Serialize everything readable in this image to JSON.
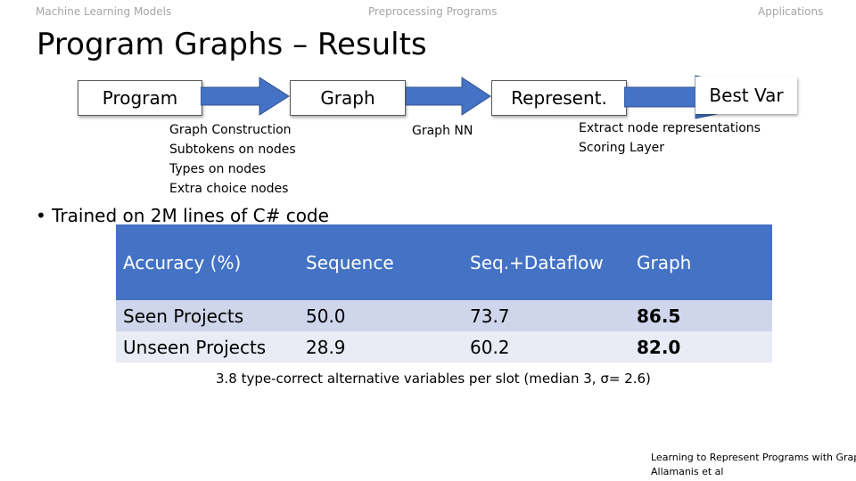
{
  "nav": {
    "left": "Machine Learning Models",
    "center": "Preprocessing Programs",
    "right": "Applications"
  },
  "title": "Program Graphs – Results",
  "pipeline": {
    "program": "Program",
    "graph": "Graph",
    "represent": "Represent.",
    "best_var": "Best Var"
  },
  "notes": {
    "graph_steps": [
      "Graph Construction",
      "Subtokens on nodes",
      "Types on nodes",
      "Extra choice nodes"
    ],
    "graph_nn": "Graph NN",
    "readout": [
      "Extract node representations",
      "Scoring Layer"
    ]
  },
  "bullet": "Trained on 2M lines of C# code",
  "table": {
    "headers": [
      "Accuracy (%)",
      "Sequence",
      "Seq.+Dataflow",
      "Graph"
    ],
    "rows": [
      [
        "Seen Projects",
        "50.0",
        "73.7",
        "86.5"
      ],
      [
        "Unseen Projects",
        "28.9",
        "60.2",
        "82.0"
      ]
    ]
  },
  "footnote": "3.8 type-correct alternative variables per slot (median 3,  σ= 2.6)",
  "citation": {
    "line1": "Learning to Represent Programs with Graphs",
    "line2": "Allamanis et al"
  },
  "colors": {
    "header_bg": "#4472c4",
    "row1_bg": "#cfd5ea",
    "row2_bg": "#e9ebf5",
    "arrow_fill": "#4472c4",
    "nav_text": "#a6a6a6"
  }
}
